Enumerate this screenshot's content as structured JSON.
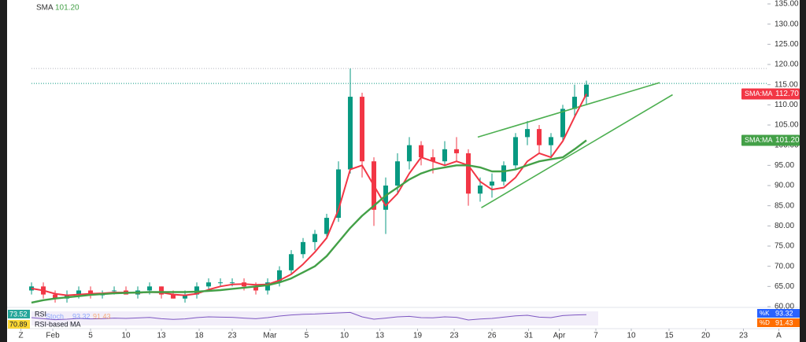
{
  "chart_data": {
    "type": "candlestick",
    "indicator_name": "SMA",
    "indicator_value": "101.20",
    "xlim": [
      -2.67,
      65.6
    ],
    "xticks": [
      {
        "value": -0.9,
        "label": "Z"
      },
      {
        "value": 1.8,
        "label": "Feb"
      },
      {
        "value": 5,
        "label": "5"
      },
      {
        "value": 8,
        "label": "10"
      },
      {
        "value": 11,
        "label": "13"
      },
      {
        "value": 14.2,
        "label": "18"
      },
      {
        "value": 17,
        "label": "23"
      },
      {
        "value": 20.2,
        "label": "Mar"
      },
      {
        "value": 23.3,
        "label": "5"
      },
      {
        "value": 26.5,
        "label": "10"
      },
      {
        "value": 29.5,
        "label": "13"
      },
      {
        "value": 32.7,
        "label": "19"
      },
      {
        "value": 35.8,
        "label": "23"
      },
      {
        "value": 39,
        "label": "26"
      },
      {
        "value": 42.1,
        "label": "31"
      },
      {
        "value": 44.7,
        "label": "Apr"
      },
      {
        "value": 47.8,
        "label": "7"
      },
      {
        "value": 50.8,
        "label": "10"
      },
      {
        "value": 54,
        "label": "15"
      },
      {
        "value": 57.1,
        "label": "20"
      },
      {
        "value": 60.3,
        "label": "23"
      },
      {
        "value": 63.3,
        "label": "A"
      }
    ],
    "ylim": [
      60,
      135
    ],
    "yticks": [
      {
        "value": 60,
        "label": "60.00"
      },
      {
        "value": 65,
        "label": "65.00"
      },
      {
        "value": 70,
        "label": "70.00"
      },
      {
        "value": 75,
        "label": "75.00"
      },
      {
        "value": 80,
        "label": "80.00"
      },
      {
        "value": 85,
        "label": "85.00"
      },
      {
        "value": 90,
        "label": "90.00"
      },
      {
        "value": 95,
        "label": "95.00"
      },
      {
        "value": 100,
        "label": "100.00"
      },
      {
        "value": 105,
        "label": "105.00"
      },
      {
        "value": 110,
        "label": "110.00"
      },
      {
        "value": 115,
        "label": "115.00"
      },
      {
        "value": 120,
        "label": "120.00"
      },
      {
        "value": 125,
        "label": "125.00"
      },
      {
        "value": 130,
        "label": "130.00"
      },
      {
        "value": 135,
        "label": "135.00"
      }
    ],
    "up_color": "#089981",
    "down_color": "#f23645",
    "open": [
      64,
      65,
      63,
      62,
      63,
      64,
      63,
      64,
      64,
      63,
      64,
      65,
      63,
      62,
      63,
      65,
      66,
      66,
      66,
      65,
      64,
      66,
      69,
      73,
      76,
      78,
      82,
      94,
      112,
      96,
      84,
      90,
      96,
      100,
      97,
      96,
      99,
      98,
      88,
      90,
      91,
      95,
      102,
      104,
      100,
      102,
      109,
      112
    ],
    "high": [
      66,
      66,
      64,
      64,
      65,
      65,
      64,
      65,
      65,
      65,
      66,
      65,
      64,
      64,
      66,
      67,
      67,
      67,
      67,
      66,
      67,
      70,
      74,
      77,
      79,
      83,
      96,
      119,
      113,
      97,
      92,
      98,
      102,
      101,
      99,
      101,
      102,
      99,
      92,
      93,
      96,
      103,
      106,
      105,
      103,
      110,
      115,
      116
    ],
    "low": [
      63,
      62,
      61,
      61,
      62,
      62,
      62,
      63,
      63,
      62,
      63,
      62,
      62,
      61,
      62,
      64,
      65,
      65,
      64,
      63,
      63,
      65,
      68,
      72,
      74,
      77,
      81,
      93,
      92,
      80,
      78,
      88,
      94,
      95,
      93,
      95,
      96,
      85,
      86,
      87,
      90,
      94,
      100,
      98,
      97,
      101,
      107,
      110
    ],
    "close": [
      65,
      63,
      62,
      63,
      64,
      63,
      63,
      64,
      63,
      64,
      65,
      63,
      62,
      63,
      65,
      66,
      66,
      66,
      65,
      64,
      66,
      69,
      73,
      76,
      78,
      82,
      94,
      112,
      96,
      84,
      90,
      96,
      100,
      97,
      96,
      99,
      98,
      88,
      90,
      91,
      95,
      102,
      104,
      100,
      102,
      109,
      112,
      115
    ],
    "series": [
      {
        "name": "SMA:MA",
        "color": "#f23645",
        "last_label": "112.70",
        "values": [
          64.5,
          64,
          63.2,
          62.8,
          63,
          63.2,
          63.3,
          63.5,
          63.5,
          63.4,
          63.6,
          63.5,
          63,
          62.8,
          63.2,
          64.2,
          65,
          65.5,
          65.6,
          65.4,
          65.5,
          66.5,
          68,
          70.5,
          73.5,
          77,
          84,
          94,
          95,
          90,
          85,
          88,
          93,
          97,
          96,
          95,
          96,
          95,
          91,
          89,
          89.5,
          92,
          96,
          98,
          97,
          101,
          107,
          112.7
        ]
      },
      {
        "name": "SMA:MA",
        "color": "#43a047",
        "last_label": "101.20",
        "values": [
          61,
          61.6,
          62,
          62.3,
          62.6,
          62.9,
          63.1,
          63.3,
          63.4,
          63.5,
          63.6,
          63.6,
          63.6,
          63.6,
          63.7,
          63.9,
          64.1,
          64.4,
          64.7,
          65,
          65.3,
          66,
          67,
          68.5,
          70,
          72.5,
          76,
          79.5,
          82.5,
          85,
          87.5,
          89.5,
          91.5,
          93,
          94,
          94.5,
          95,
          95,
          94.5,
          93.5,
          93.5,
          94,
          95,
          96,
          96.5,
          97,
          99,
          101.2
        ]
      }
    ],
    "price_lines": [
      115.3,
      119
    ],
    "trendlines": [
      {
        "x": [
          37.8,
          53.2
        ],
        "y": [
          102,
          115.5
        ],
        "color": "#4caf50"
      },
      {
        "x": [
          38.1,
          54.3
        ],
        "y": [
          84.5,
          112.5
        ],
        "color": "#4caf50"
      }
    ],
    "rsi": {
      "name": "RSI",
      "value_label": "73.52",
      "ma_name": "RSI-based MA",
      "ma_label": "70.89",
      "ylim": [
        0,
        100
      ],
      "color": "#7e57c2",
      "values": [
        55,
        48,
        42,
        45,
        50,
        47,
        48,
        52,
        50,
        53,
        56,
        48,
        44,
        47,
        55,
        60,
        58,
        57,
        52,
        48,
        55,
        65,
        72,
        76,
        78,
        82,
        85,
        88,
        60,
        45,
        52,
        60,
        63,
        55,
        54,
        60,
        57,
        40,
        46,
        50,
        58,
        66,
        70,
        58,
        55,
        68,
        72,
        73.52
      ]
    },
    "stoch": {
      "name": "Stoch",
      "k_name": "%K",
      "k_label": "93.32",
      "d_name": "%D",
      "d_label": "91.43"
    }
  }
}
